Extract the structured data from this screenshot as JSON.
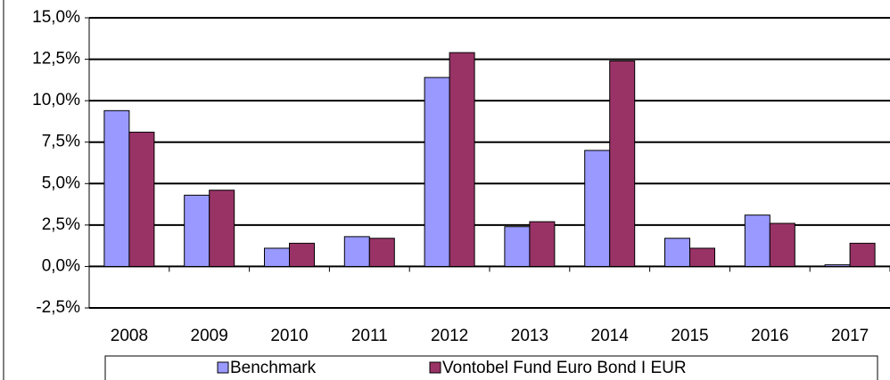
{
  "chart_data": {
    "type": "bar",
    "categories": [
      "2008",
      "2009",
      "2010",
      "2011",
      "2012",
      "2013",
      "2014",
      "2015",
      "2016",
      "2017"
    ],
    "series": [
      {
        "name": "Benchmark",
        "color": "#9999ff",
        "values": [
          9.4,
          4.3,
          1.1,
          1.8,
          11.4,
          2.4,
          7.0,
          1.7,
          3.1,
          0.1
        ]
      },
      {
        "name": "Vontobel Fund Euro Bond I EUR",
        "color": "#993366",
        "values": [
          8.1,
          4.6,
          1.4,
          1.7,
          12.9,
          2.7,
          12.4,
          1.1,
          2.6,
          1.4
        ]
      }
    ],
    "ylim": [
      -2.5,
      15
    ],
    "yticks": [
      {
        "value": -2.5,
        "label": "-2,5%"
      },
      {
        "value": 0,
        "label": "0,0%"
      },
      {
        "value": 2.5,
        "label": "2,5%"
      },
      {
        "value": 5,
        "label": "5,0%"
      },
      {
        "value": 7.5,
        "label": "7,5%"
      },
      {
        "value": 10,
        "label": "10,0%"
      },
      {
        "value": 12.5,
        "label": "12,5%"
      },
      {
        "value": 15,
        "label": "15,0%"
      }
    ],
    "grid": true,
    "legend": "bottom"
  }
}
